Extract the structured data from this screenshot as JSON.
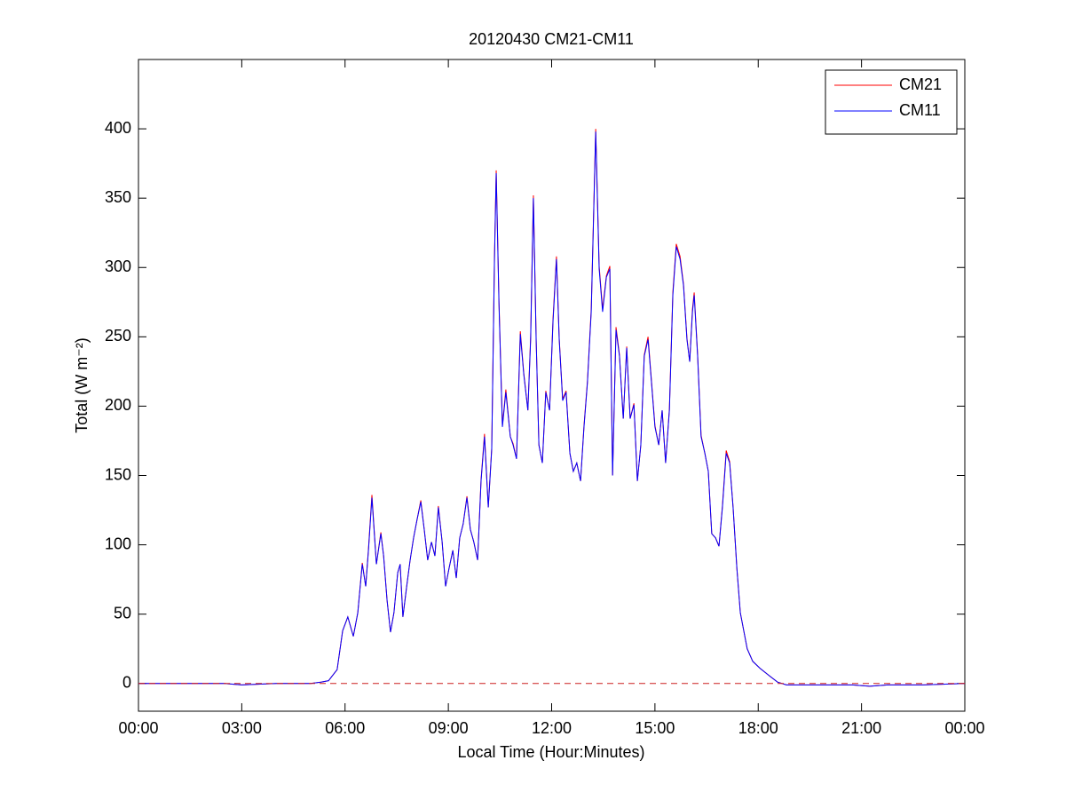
{
  "chart_data": {
    "type": "line",
    "title": "20120430 CM21-CM11",
    "x_label": "Local Time (Hour:Minutes)",
    "y_label": "Total (W m⁻²)",
    "xlim": [
      0,
      24
    ],
    "ylim": [
      -20,
      450
    ],
    "xticks": [
      {
        "value": 0,
        "label": "00:00"
      },
      {
        "value": 3,
        "label": "03:00"
      },
      {
        "value": 6,
        "label": "06:00"
      },
      {
        "value": 9,
        "label": "09:00"
      },
      {
        "value": 12,
        "label": "12:00"
      },
      {
        "value": 15,
        "label": "15:00"
      },
      {
        "value": 18,
        "label": "18:00"
      },
      {
        "value": 21,
        "label": "21:00"
      },
      {
        "value": 24,
        "label": "00:00"
      }
    ],
    "yticks": [
      0,
      50,
      100,
      150,
      200,
      250,
      300,
      350,
      400
    ],
    "legend": "upper-right",
    "reference_line": {
      "value": 0,
      "color": "#cc2020",
      "style": "dashed"
    },
    "x": [
      0,
      2.5,
      3.0,
      4.0,
      5.0,
      5.3,
      5.52,
      5.77,
      5.93,
      6.08,
      6.24,
      6.37,
      6.5,
      6.6,
      6.68,
      6.78,
      6.91,
      7.04,
      7.12,
      7.22,
      7.32,
      7.42,
      7.53,
      7.6,
      7.68,
      7.79,
      7.89,
      7.99,
      8.09,
      8.2,
      8.3,
      8.4,
      8.51,
      8.61,
      8.71,
      8.82,
      8.92,
      9.02,
      9.13,
      9.23,
      9.33,
      9.43,
      9.54,
      9.64,
      9.74,
      9.85,
      9.95,
      10.05,
      10.16,
      10.26,
      10.34,
      10.39,
      10.47,
      10.57,
      10.67,
      10.8,
      10.88,
      10.98,
      11.09,
      11.19,
      11.31,
      11.39,
      11.47,
      11.55,
      11.63,
      11.73,
      11.83,
      11.94,
      12.04,
      12.14,
      12.22,
      12.32,
      12.42,
      12.53,
      12.63,
      12.73,
      12.84,
      12.94,
      13.04,
      13.15,
      13.28,
      13.38,
      13.48,
      13.59,
      13.69,
      13.77,
      13.87,
      13.97,
      14.08,
      14.18,
      14.28,
      14.39,
      14.49,
      14.59,
      14.69,
      14.8,
      14.9,
      15.0,
      15.11,
      15.21,
      15.31,
      15.42,
      15.52,
      15.62,
      15.73,
      15.83,
      15.93,
      16.01,
      16.09,
      16.14,
      16.24,
      16.34,
      16.45,
      16.55,
      16.65,
      16.76,
      16.86,
      16.96,
      17.07,
      17.17,
      17.27,
      17.38,
      17.48,
      17.58,
      17.68,
      17.84,
      18.05,
      18.3,
      18.56,
      18.82,
      19.18,
      20.73,
      21.24,
      21.76,
      22.79,
      24
    ],
    "series": [
      {
        "name": "CM21",
        "color": "#ff0000",
        "values": [
          0,
          0,
          -1,
          0,
          0,
          1,
          2,
          10,
          38,
          48,
          34,
          51,
          87,
          70,
          97,
          136,
          86,
          109,
          92,
          60,
          37,
          51,
          80,
          86,
          48,
          70,
          89,
          105,
          118,
          132,
          111,
          89,
          102,
          92,
          128,
          102,
          70,
          83,
          96,
          76,
          105,
          115,
          135,
          111,
          102,
          89,
          147,
          180,
          127,
          170,
          308,
          370,
          276,
          186,
          212,
          178,
          173,
          162,
          254,
          224,
          197,
          250,
          352,
          249,
          172,
          159,
          211,
          197,
          263,
          308,
          249,
          205,
          211,
          166,
          153,
          159,
          146,
          186,
          218,
          270,
          400,
          301,
          270,
          294,
          301,
          150,
          257,
          237,
          191,
          243,
          191,
          202,
          146,
          172,
          237,
          250,
          218,
          186,
          172,
          197,
          159,
          198,
          282,
          317,
          308,
          288,
          249,
          232,
          270,
          282,
          237,
          179,
          166,
          153,
          108,
          105,
          99,
          128,
          168,
          160,
          127,
          83,
          51,
          38,
          25,
          16,
          11,
          6,
          1,
          -1,
          -1,
          -1,
          -2,
          -1,
          -1,
          0
        ]
      },
      {
        "name": "CM11",
        "color": "#0000ff",
        "values": [
          0,
          0,
          -1,
          0,
          0,
          1,
          2,
          10,
          38,
          48,
          34,
          51,
          86,
          70,
          96,
          134,
          86,
          108,
          92,
          60,
          37,
          51,
          80,
          86,
          48,
          70,
          89,
          105,
          118,
          131,
          111,
          89,
          102,
          92,
          127,
          102,
          70,
          83,
          96,
          76,
          105,
          115,
          134,
          111,
          102,
          89,
          146,
          178,
          127,
          169,
          306,
          368,
          274,
          185,
          210,
          178,
          172,
          162,
          252,
          223,
          197,
          248,
          350,
          248,
          172,
          159,
          210,
          197,
          261,
          306,
          248,
          204,
          210,
          166,
          153,
          159,
          146,
          185,
          217,
          268,
          398,
          299,
          268,
          293,
          299,
          150,
          255,
          236,
          191,
          242,
          191,
          201,
          146,
          172,
          236,
          248,
          217,
          185,
          172,
          197,
          159,
          197,
          280,
          315,
          306,
          287,
          248,
          232,
          268,
          280,
          236,
          178,
          166,
          153,
          108,
          105,
          99,
          127,
          166,
          159,
          127,
          83,
          51,
          38,
          25,
          16,
          11,
          6,
          1,
          -1,
          -1,
          -1,
          -2,
          -1,
          -1,
          0
        ]
      }
    ]
  }
}
